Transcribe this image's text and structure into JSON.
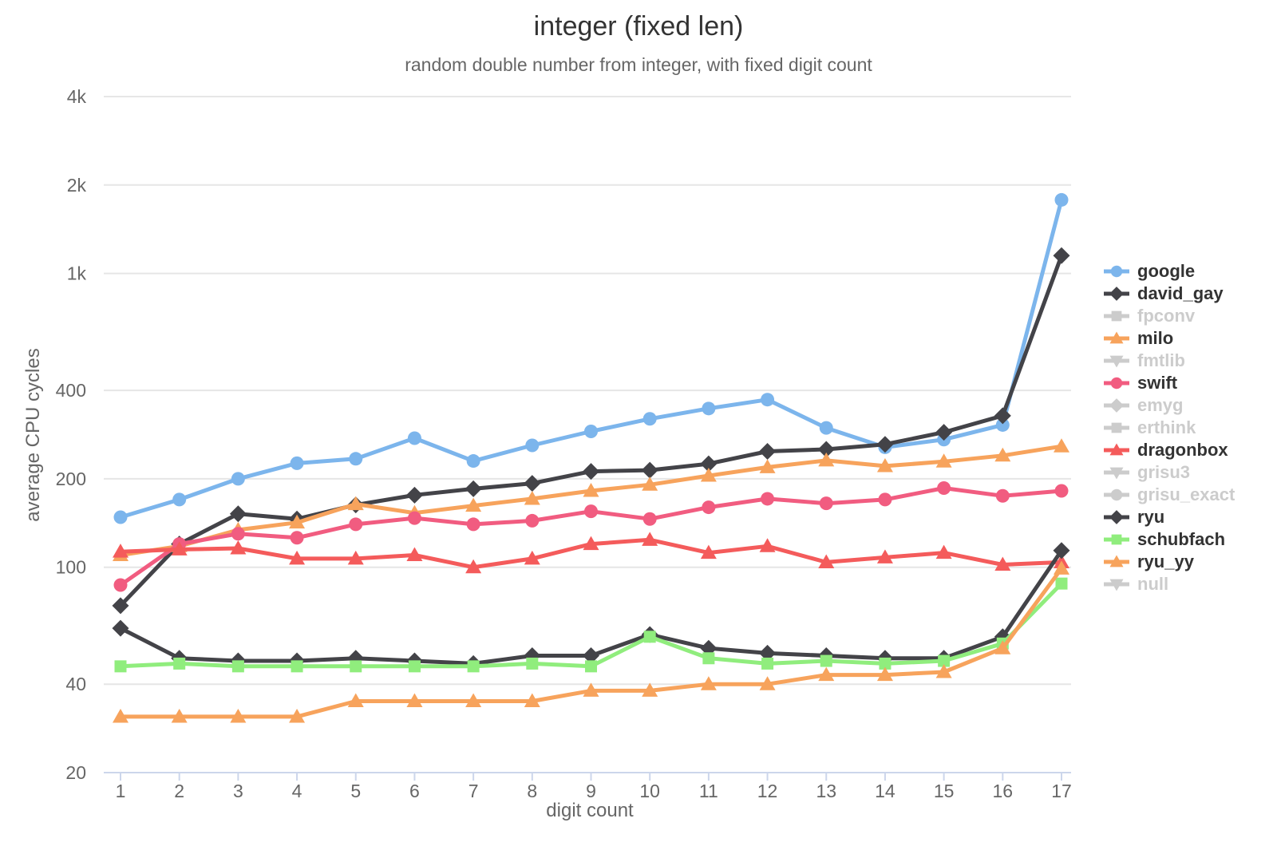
{
  "chart_data": {
    "type": "line",
    "title": "integer (fixed len)",
    "subtitle": "random double number from integer, with fixed digit count",
    "xlabel": "digit count",
    "ylabel": "average CPU cycles",
    "x": [
      1,
      2,
      3,
      4,
      5,
      6,
      7,
      8,
      9,
      10,
      11,
      12,
      13,
      14,
      15,
      16,
      17
    ],
    "y_scale": "log",
    "ylim": [
      20,
      4000
    ],
    "y_ticks": [
      20,
      40,
      100,
      200,
      400,
      1000,
      2000,
      4000
    ],
    "y_tick_labels": [
      "20",
      "40",
      "100",
      "200",
      "400",
      "1k",
      "2k",
      "4k"
    ],
    "grid": "horizontal",
    "legend_position": "right",
    "series": [
      {
        "name": "google",
        "color": "#7cb5ec",
        "marker": "circle",
        "enabled": true,
        "values": [
          148,
          170,
          200,
          226,
          234,
          275,
          230,
          260,
          290,
          320,
          347,
          372,
          298,
          256,
          272,
          305,
          1780
        ]
      },
      {
        "name": "david_gay",
        "color": "#434348",
        "marker": "diamond",
        "enabled": true,
        "values": [
          74,
          120,
          152,
          146,
          163,
          176,
          185,
          193,
          212,
          214,
          225,
          248,
          252,
          262,
          288,
          328,
          1150
        ]
      },
      {
        "name": "fpconv",
        "color": "#cccccc",
        "marker": "square",
        "enabled": false,
        "values": []
      },
      {
        "name": "milo",
        "color": "#f7a35c",
        "marker": "triangle",
        "enabled": true,
        "values": [
          110,
          118,
          134,
          142,
          164,
          153,
          162,
          171,
          182,
          191,
          205,
          219,
          231,
          221,
          229,
          240,
          258
        ]
      },
      {
        "name": "fmtlib",
        "color": "#cccccc",
        "marker": "triangle-down",
        "enabled": false,
        "values": []
      },
      {
        "name": "swift",
        "color": "#f15c80",
        "marker": "circle",
        "enabled": true,
        "values": [
          87,
          120,
          130,
          126,
          140,
          147,
          140,
          144,
          155,
          146,
          160,
          171,
          165,
          170,
          186,
          175,
          182
        ]
      },
      {
        "name": "emyg",
        "color": "#cccccc",
        "marker": "diamond",
        "enabled": false,
        "values": []
      },
      {
        "name": "erthink",
        "color": "#cccccc",
        "marker": "square",
        "enabled": false,
        "values": []
      },
      {
        "name": "dragonbox",
        "color": "#f45b5b",
        "marker": "triangle",
        "enabled": true,
        "values": [
          113,
          115,
          116,
          107,
          107,
          110,
          100,
          107,
          120,
          124,
          112,
          118,
          104,
          108,
          112,
          102,
          104
        ]
      },
      {
        "name": "grisu3",
        "color": "#cccccc",
        "marker": "triangle-down",
        "enabled": false,
        "values": []
      },
      {
        "name": "grisu_exact",
        "color": "#cccccc",
        "marker": "circle",
        "enabled": false,
        "values": []
      },
      {
        "name": "ryu",
        "color": "#434348",
        "marker": "diamond",
        "enabled": true,
        "values": [
          62,
          49,
          48,
          48,
          49,
          48,
          47,
          50,
          50,
          59,
          53,
          51,
          50,
          49,
          49,
          58,
          114
        ]
      },
      {
        "name": "schubfach",
        "color": "#90ed7d",
        "marker": "square",
        "enabled": true,
        "values": [
          46,
          47,
          46,
          46,
          46,
          46,
          46,
          47,
          46,
          58,
          49,
          47,
          48,
          47,
          48,
          55,
          88
        ]
      },
      {
        "name": "ryu_yy",
        "color": "#f7a35c",
        "marker": "triangle",
        "enabled": true,
        "values": [
          31,
          31,
          31,
          31,
          35,
          35,
          35,
          35,
          38,
          38,
          40,
          40,
          43,
          43,
          44,
          53,
          99
        ]
      },
      {
        "name": "null",
        "color": "#cccccc",
        "marker": "triangle-down",
        "enabled": false,
        "values": []
      }
    ],
    "style": {
      "grid_color": "#e6e6e6",
      "axis_line_color": "#ccd6eb",
      "label_color": "#666666",
      "title_color": "#333333",
      "subtitle_color": "#666666",
      "legend_active_color": "#333333",
      "legend_disabled_color": "#cccccc"
    }
  }
}
